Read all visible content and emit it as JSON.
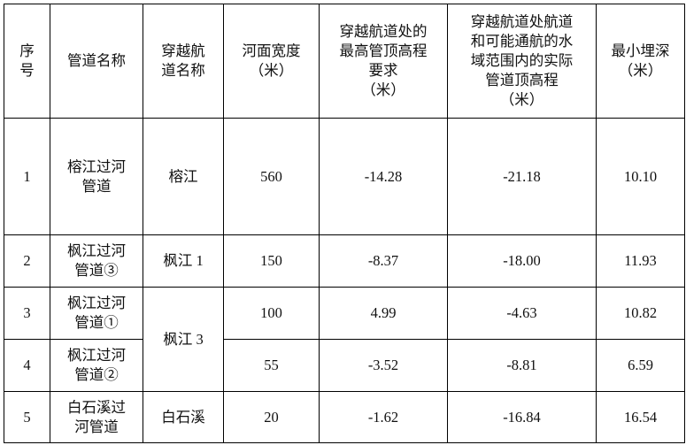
{
  "headers": [
    "序\n号",
    "管道名称",
    "穿越航\n道名称",
    "河面宽度\n（米）",
    "穿越航道处的\n最高管顶高程\n要求\n（米）",
    "穿越航道处航道\n和可能通航的水\n域范围内的实际\n管道顶高程\n（米）",
    "最小埋深\n（米）"
  ],
  "rows": [
    {
      "no": "1",
      "pipe": "榕江过河\n管道",
      "channel": "榕江",
      "width": "560",
      "required": "-14.28",
      "actual": "-21.18",
      "depth": "10.10"
    },
    {
      "no": "2",
      "pipe": "枫江过河\n管道③",
      "channel": "枫江 1",
      "width": "150",
      "required": "-8.37",
      "actual": "-18.00",
      "depth": "11.93"
    },
    {
      "no": "3",
      "pipe": "枫江过河\n管道①",
      "channel": "枫江 3",
      "width": "100",
      "required": "4.99",
      "actual": "-4.63",
      "depth": "10.82"
    },
    {
      "no": "4",
      "pipe": "枫江过河\n管道②",
      "channel": "",
      "width": "55",
      "required": "-3.52",
      "actual": "-8.81",
      "depth": "6.59"
    },
    {
      "no": "5",
      "pipe": "白石溪过\n河管道",
      "channel": "白石溪",
      "width": "20",
      "required": "-1.62",
      "actual": "-16.84",
      "depth": "16.54"
    }
  ]
}
